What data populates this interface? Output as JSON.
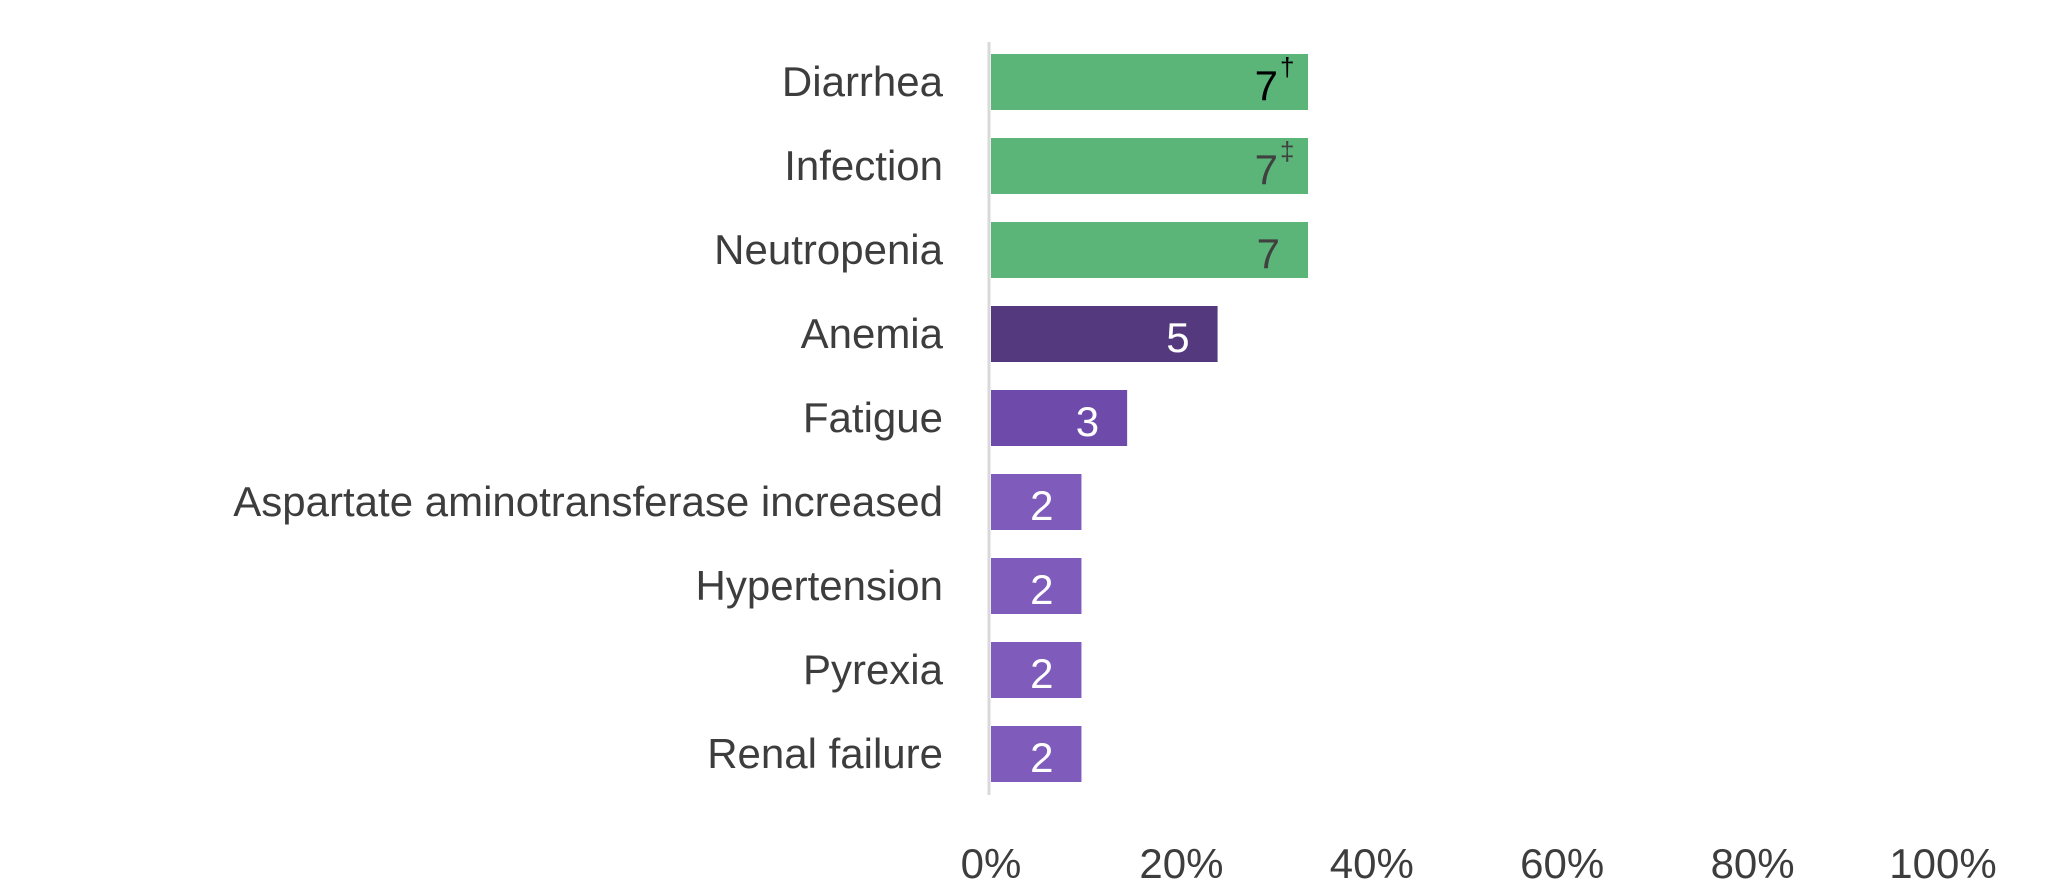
{
  "chart_data": {
    "type": "bar",
    "orientation": "horizontal",
    "title": "",
    "xlabel": "",
    "ylabel": "",
    "xlim": [
      0,
      100
    ],
    "x_ticks": [
      "0%",
      "20%",
      "40%",
      "60%",
      "80%",
      "100%"
    ],
    "grid": false,
    "legend": "none",
    "categories": [
      "Diarrhea",
      "Infection",
      "Neutropenia",
      "Anemia",
      "Fatigue",
      "Aspartate aminotransferase increased",
      "Hypertension",
      "Pyrexia",
      "Renal failure"
    ],
    "values": [
      33.3,
      33.3,
      33.3,
      23.8,
      14.3,
      9.5,
      9.5,
      9.5,
      9.5
    ],
    "data_labels": [
      {
        "text": "7",
        "sup": "†"
      },
      {
        "text": "7",
        "sup": "‡"
      },
      {
        "text": "7",
        "sup": ""
      },
      {
        "text": "5",
        "sup": ""
      },
      {
        "text": "3",
        "sup": ""
      },
      {
        "text": "2",
        "sup": ""
      },
      {
        "text": "2",
        "sup": ""
      },
      {
        "text": "2",
        "sup": ""
      },
      {
        "text": "2",
        "sup": ""
      }
    ],
    "bar_colors": [
      "#5bb578",
      "#5bb578",
      "#5bb578",
      "#55397f",
      "#6e4aab",
      "#7f5bbb",
      "#7f5bbb",
      "#7f5bbb",
      "#7f5bbb"
    ],
    "label_colors": [
      "#000000",
      "#404040",
      "#404040",
      "#ffffff",
      "#ffffff",
      "#ffffff",
      "#ffffff",
      "#ffffff",
      "#ffffff"
    ],
    "axis_color": "#d9d9d9",
    "text_color": "#3d3d3d"
  }
}
